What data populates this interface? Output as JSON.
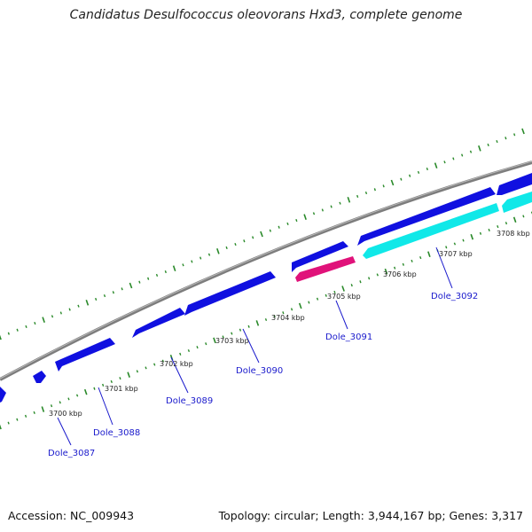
{
  "title": "Candidatus Desulfococcus oleovorans Hxd3, complete genome",
  "footer": {
    "accession": "Accession: NC_009943",
    "summary": "Topology: circular; Length: 3,944,167 bp; Genes: 3,317"
  },
  "colors": {
    "backbone": "#8c8c8c",
    "cds_forward": "#1010e0",
    "cds_reverse": "#10e8e8",
    "rna": "#e0127a",
    "tick_mark": "#2a8a2a",
    "gene_label": "#1a1acc"
  },
  "kbp_labels": [
    "3700 kbp",
    "3701 kbp",
    "3702 kbp",
    "3703 kbp",
    "3704 kbp",
    "3705 kbp",
    "3706 kbp",
    "3707 kbp",
    "3708 kbp"
  ],
  "gene_labels": [
    "Dole_3087",
    "Dole_3088",
    "Dole_3089",
    "Dole_3090",
    "Dole_3091",
    "Dole_3092"
  ]
}
